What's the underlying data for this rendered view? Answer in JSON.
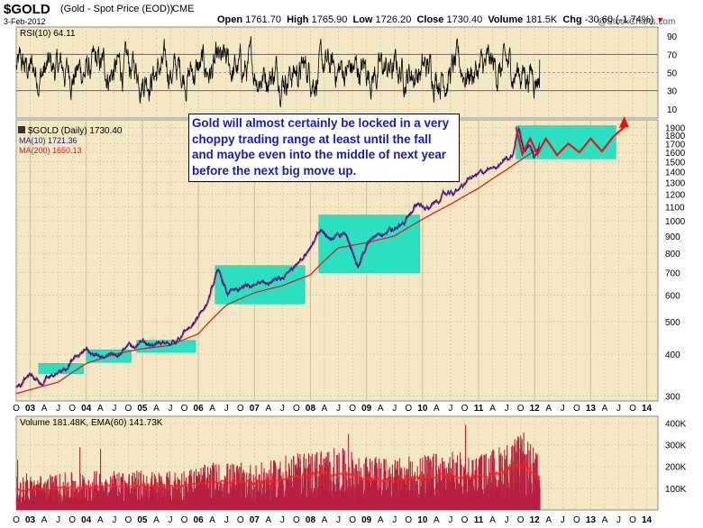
{
  "header": {
    "symbol": "$GOLD",
    "description": "(Gold - Spot Price (EOD))",
    "exchange": "CME",
    "date": "3-Feb-2012",
    "open_label": "Open",
    "open": "1761.70",
    "high_label": "High",
    "high": "1765.90",
    "low_label": "Low",
    "low": "1726.20",
    "close_label": "Close",
    "close": "1730.40",
    "volume_label": "Volume",
    "volume": "181.5K",
    "chg_label": "Chg",
    "chg": "-30.60 (-1.74%)",
    "watermark": "@StockCharts.com"
  },
  "annotation": "Gold will almost certainly be locked in a very choppy trading range at least until the fall and maybe even into the middle of next year before the next big move up.",
  "colors": {
    "background": "#f3e7c4",
    "price": "#1a1a9a",
    "price_highlight": "#d01030",
    "ma10": "#1a1a9a",
    "ma200": "#d42020",
    "box": "#2be0c0",
    "forecast": "#ee1111",
    "volume_bar": "#b82040",
    "note_text": "#1a1ab4"
  },
  "chart_data": [
    {
      "type": "line",
      "panel": "rsi",
      "legend": "RSI(10) 64.11",
      "y_ticks": [
        10,
        30,
        50,
        70,
        90
      ],
      "ylim": [
        0,
        100
      ],
      "reference_lines": [
        30,
        50,
        70
      ],
      "last_value": 64.11
    },
    {
      "type": "line",
      "panel": "price",
      "scale": "log",
      "ylim": [
        290,
        2000
      ],
      "y_ticks": [
        300,
        400,
        500,
        600,
        700,
        800,
        900,
        1000,
        1100,
        1200,
        1300,
        1400,
        1500,
        1600,
        1700,
        1800,
        1900
      ],
      "legend": [
        {
          "label": "$GOLD (Daily) 1730.40"
        },
        {
          "label": "MA(10) 1721.36"
        },
        {
          "label": "MA(200) 1650.13"
        }
      ],
      "x_axis_labels": [
        "O",
        "03",
        "A",
        "J",
        "O",
        "04",
        "A",
        "J",
        "O",
        "05",
        "A",
        "J",
        "O",
        "06",
        "A",
        "J",
        "O",
        "07",
        "A",
        "J",
        "O",
        "08",
        "A",
        "J",
        "O",
        "09",
        "A",
        "J",
        "O",
        "10",
        "A",
        "J",
        "O",
        "11",
        "A",
        "J",
        "O",
        "12",
        "A",
        "J",
        "O",
        "13",
        "A",
        "J",
        "O",
        "14"
      ],
      "xlim": [
        2002.75,
        2014.2
      ],
      "series": [
        {
          "name": "$GOLD",
          "x": [
            2002.75,
            2003.0,
            2003.2,
            2003.45,
            2003.7,
            2004.0,
            2004.25,
            2004.45,
            2004.7,
            2005.0,
            2005.25,
            2005.45,
            2005.7,
            2005.95,
            2006.15,
            2006.35,
            2006.5,
            2006.7,
            2007.0,
            2007.3,
            2007.5,
            2007.75,
            2008.0,
            2008.2,
            2008.4,
            2008.6,
            2008.85,
            2009.0,
            2009.2,
            2009.5,
            2009.7,
            2009.92,
            2010.1,
            2010.4,
            2010.6,
            2010.85,
            2011.0,
            2011.2,
            2011.45,
            2011.6,
            2011.67,
            2011.72,
            2011.8,
            2011.9,
            2011.98,
            2012.09
          ],
          "values": [
            318,
            345,
            330,
            348,
            375,
            410,
            395,
            395,
            418,
            430,
            428,
            428,
            450,
            500,
            560,
            700,
            615,
            620,
            640,
            660,
            665,
            730,
            850,
            930,
            880,
            920,
            740,
            840,
            920,
            940,
            1000,
            1130,
            1080,
            1200,
            1220,
            1340,
            1380,
            1410,
            1520,
            1560,
            1780,
            1880,
            1640,
            1720,
            1560,
            1730
          ]
        },
        {
          "name": "MA(200)",
          "x": [
            2002.75,
            2003.5,
            2004.0,
            2004.5,
            2005.0,
            2005.5,
            2006.0,
            2006.5,
            2007.0,
            2007.5,
            2008.0,
            2008.5,
            2009.0,
            2009.5,
            2010.0,
            2010.5,
            2011.0,
            2011.5,
            2012.09
          ],
          "values": [
            305,
            330,
            375,
            400,
            415,
            425,
            460,
            560,
            610,
            640,
            690,
            830,
            860,
            900,
            1010,
            1120,
            1250,
            1420,
            1650.13
          ]
        }
      ],
      "shaded_ranges": [
        {
          "x": [
            2003.15,
            2003.95
          ],
          "y": [
            350,
            375
          ]
        },
        {
          "x": [
            2004.0,
            2004.8
          ],
          "y": [
            378,
            412
          ]
        },
        {
          "x": [
            2004.9,
            2005.95
          ],
          "y": [
            405,
            440
          ]
        },
        {
          "x": [
            2006.3,
            2007.9
          ],
          "y": [
            565,
            735
          ]
        },
        {
          "x": [
            2008.15,
            2009.95
          ],
          "y": [
            700,
            1040
          ]
        },
        {
          "x": [
            2011.67,
            2013.45
          ],
          "y": [
            1530,
            1920
          ]
        }
      ],
      "forecast": {
        "x": [
          2011.67,
          2011.78,
          2011.92,
          2012.05,
          2012.2,
          2012.4,
          2012.6,
          2012.8,
          2013.0,
          2013.2,
          2013.4,
          2013.6
        ],
        "values": [
          1900,
          1580,
          1760,
          1580,
          1760,
          1570,
          1700,
          1600,
          1760,
          1610,
          1780,
          2400
        ]
      }
    },
    {
      "type": "bar",
      "panel": "volume",
      "legend": "Volume 181.48K, EMA(60) 141.73K",
      "y_ticks": [
        "100K",
        "200K",
        "300K",
        "400K"
      ],
      "y_tick_values": [
        100,
        200,
        300,
        400
      ],
      "ylim": [
        0,
        430
      ],
      "last_volume": 181.48,
      "last_ema": 141.73,
      "series": [
        {
          "name": "EMA(60)",
          "x": [
            2002.75,
            2003.5,
            2004.5,
            2005.5,
            2006.0,
            2006.5,
            2007.0,
            2007.5,
            2008.0,
            2008.5,
            2009.0,
            2009.5,
            2010.0,
            2010.5,
            2011.0,
            2011.5,
            2011.8,
            2012.09
          ],
          "values": [
            90,
            100,
            110,
            105,
            120,
            130,
            125,
            140,
            165,
            170,
            145,
            140,
            150,
            160,
            150,
            185,
            210,
            141.73
          ]
        }
      ]
    }
  ]
}
